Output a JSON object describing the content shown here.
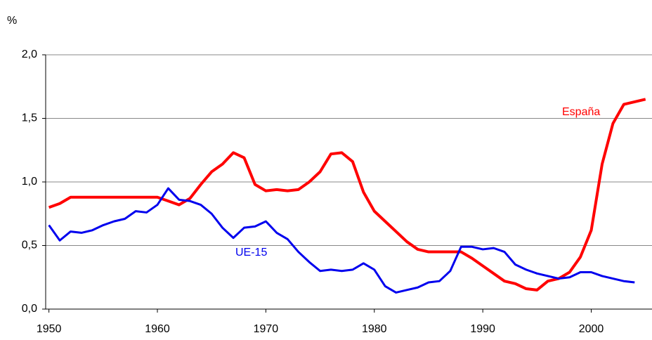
{
  "chart_data": {
    "type": "line",
    "ylabel": "%",
    "x": [
      1950,
      1951,
      1952,
      1953,
      1954,
      1955,
      1956,
      1957,
      1958,
      1959,
      1960,
      1961,
      1962,
      1963,
      1964,
      1965,
      1966,
      1967,
      1968,
      1969,
      1970,
      1971,
      1972,
      1973,
      1974,
      1975,
      1976,
      1977,
      1978,
      1979,
      1980,
      1981,
      1982,
      1983,
      1984,
      1985,
      1986,
      1987,
      1988,
      1989,
      1990,
      1991,
      1992,
      1993,
      1994,
      1995,
      1996,
      1997,
      1998,
      1999,
      2000,
      2001,
      2002,
      2003,
      2004,
      2005
    ],
    "series": [
      {
        "name": "España",
        "color": "#ff0000",
        "values": [
          0.8,
          0.83,
          0.88,
          0.88,
          0.88,
          0.88,
          0.88,
          0.88,
          0.88,
          0.88,
          0.88,
          0.85,
          0.82,
          0.87,
          0.98,
          1.08,
          1.14,
          1.23,
          1.19,
          0.98,
          0.93,
          0.94,
          0.93,
          0.94,
          1.0,
          1.08,
          1.22,
          1.23,
          1.16,
          0.92,
          0.77,
          0.69,
          0.61,
          0.53,
          0.47,
          0.45,
          0.45,
          0.45,
          0.45,
          0.4,
          0.34,
          0.28,
          0.22,
          0.2,
          0.16,
          0.15,
          0.22,
          0.24,
          0.29,
          0.41,
          0.62,
          1.14,
          1.46,
          1.61,
          1.63,
          1.65
        ]
      },
      {
        "name": "UE-15",
        "color": "#0000ee",
        "values": [
          0.66,
          0.54,
          0.61,
          0.6,
          0.62,
          0.66,
          0.69,
          0.71,
          0.77,
          0.76,
          0.82,
          0.95,
          0.86,
          0.85,
          0.82,
          0.75,
          0.64,
          0.56,
          0.64,
          0.65,
          0.69,
          0.6,
          0.55,
          0.45,
          0.37,
          0.3,
          0.31,
          0.3,
          0.31,
          0.36,
          0.31,
          0.18,
          0.13,
          0.15,
          0.17,
          0.21,
          0.22,
          0.3,
          0.49,
          0.49,
          0.47,
          0.48,
          0.45,
          0.35,
          0.31,
          0.28,
          0.26,
          0.24,
          0.25,
          0.29,
          0.29,
          0.26,
          0.24,
          0.22,
          0.21,
          null
        ]
      }
    ],
    "xlim": [
      1949.7,
      2005.6
    ],
    "xticks": [
      1950,
      1960,
      1970,
      1980,
      1990,
      2000
    ],
    "ylim": [
      0,
      2
    ],
    "yticks": [
      {
        "value": 0,
        "label": "0,0"
      },
      {
        "value": 0.5,
        "label": "0,5"
      },
      {
        "value": 1,
        "label": "1,0"
      },
      {
        "value": 1.5,
        "label": "1,5"
      },
      {
        "value": 2,
        "label": "2,0"
      }
    ],
    "grid": true
  }
}
